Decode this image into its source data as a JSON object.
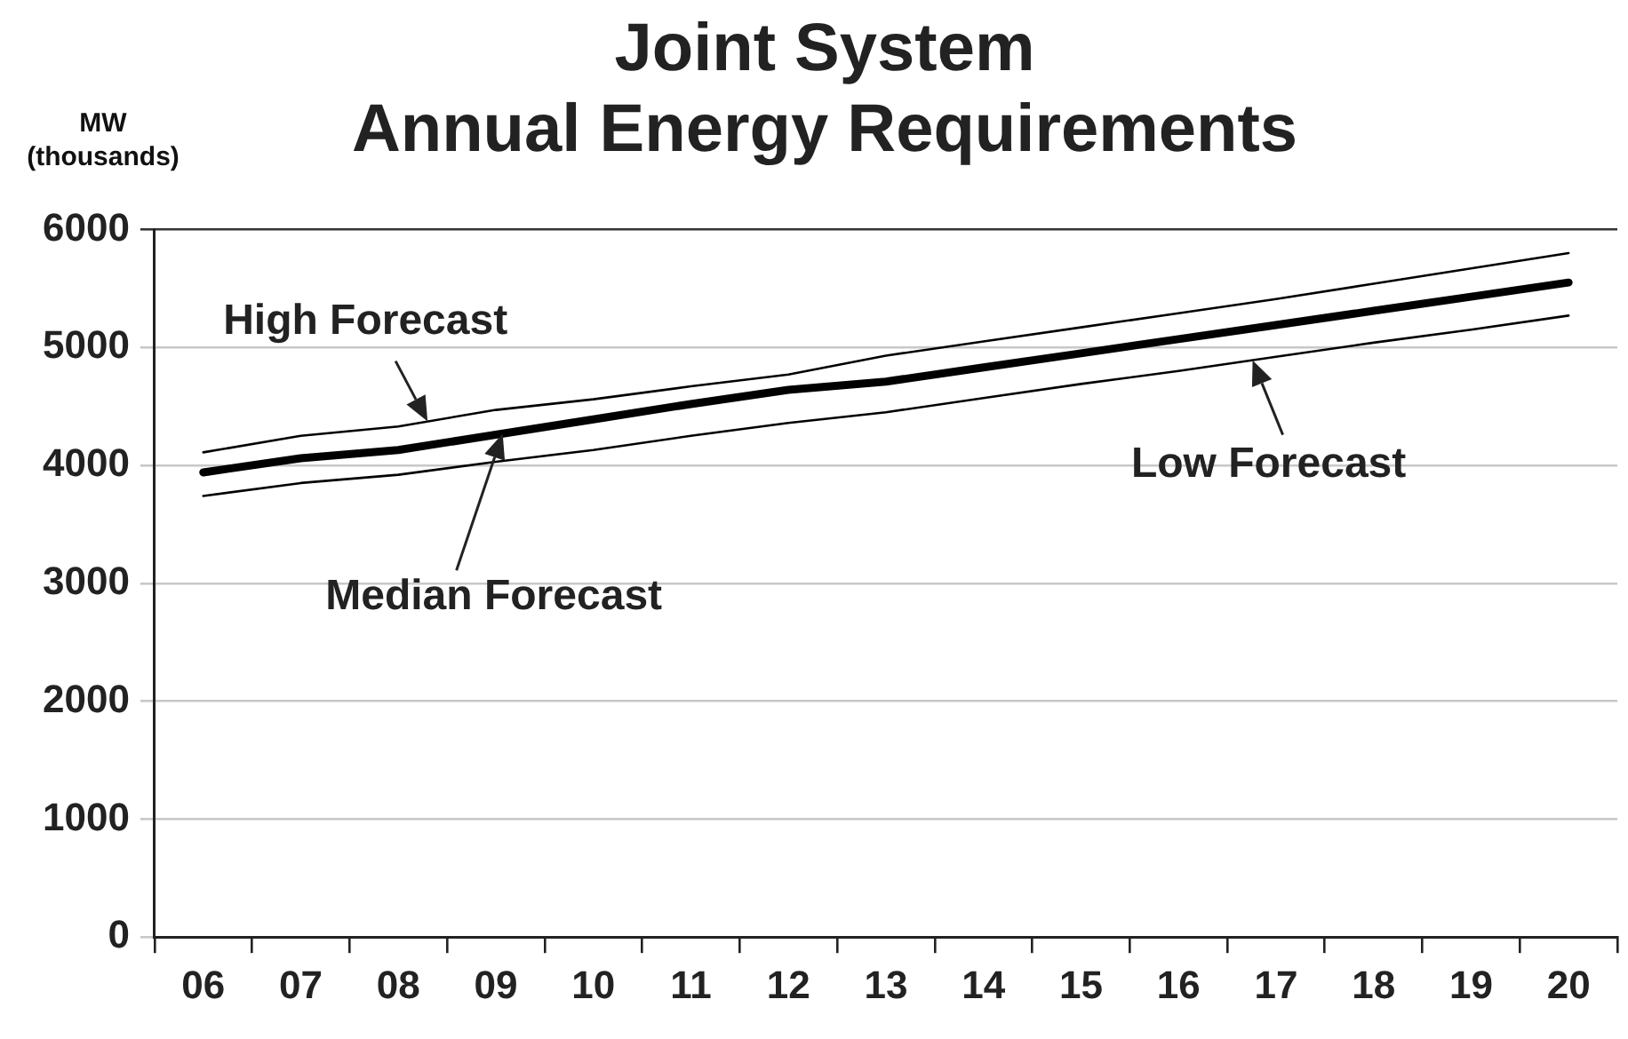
{
  "chart_data": {
    "type": "line",
    "title": "Joint System\nAnnual Energy Requirements",
    "ylabel": "MW\n(thousands)",
    "categories": [
      "06",
      "07",
      "08",
      "09",
      "10",
      "11",
      "12",
      "13",
      "14",
      "15",
      "16",
      "17",
      "18",
      "19",
      "20"
    ],
    "series": [
      {
        "name": "High Forecast",
        "color": "#000000",
        "values": [
          4110,
          4250,
          4330,
          4470,
          4560,
          4670,
          4770,
          4930,
          5050,
          5170,
          5290,
          5410,
          5540,
          5670,
          5800
        ]
      },
      {
        "name": "Median Forecast",
        "color": "#000000",
        "values": [
          3940,
          4060,
          4130,
          4260,
          4390,
          4520,
          4640,
          4710,
          4830,
          4950,
          5070,
          5190,
          5310,
          5430,
          5550
        ]
      },
      {
        "name": "Low Forecast",
        "color": "#000000",
        "values": [
          3740,
          3850,
          3920,
          4030,
          4130,
          4250,
          4360,
          4450,
          4570,
          4690,
          4800,
          4920,
          5040,
          5150,
          5270
        ]
      }
    ],
    "ylim": [
      0,
      6000
    ],
    "yticks": [
      0,
      1000,
      2000,
      3000,
      4000,
      5000,
      6000
    ],
    "grid": "y",
    "legend": false,
    "marker": "none",
    "line_style": "solid"
  }
}
